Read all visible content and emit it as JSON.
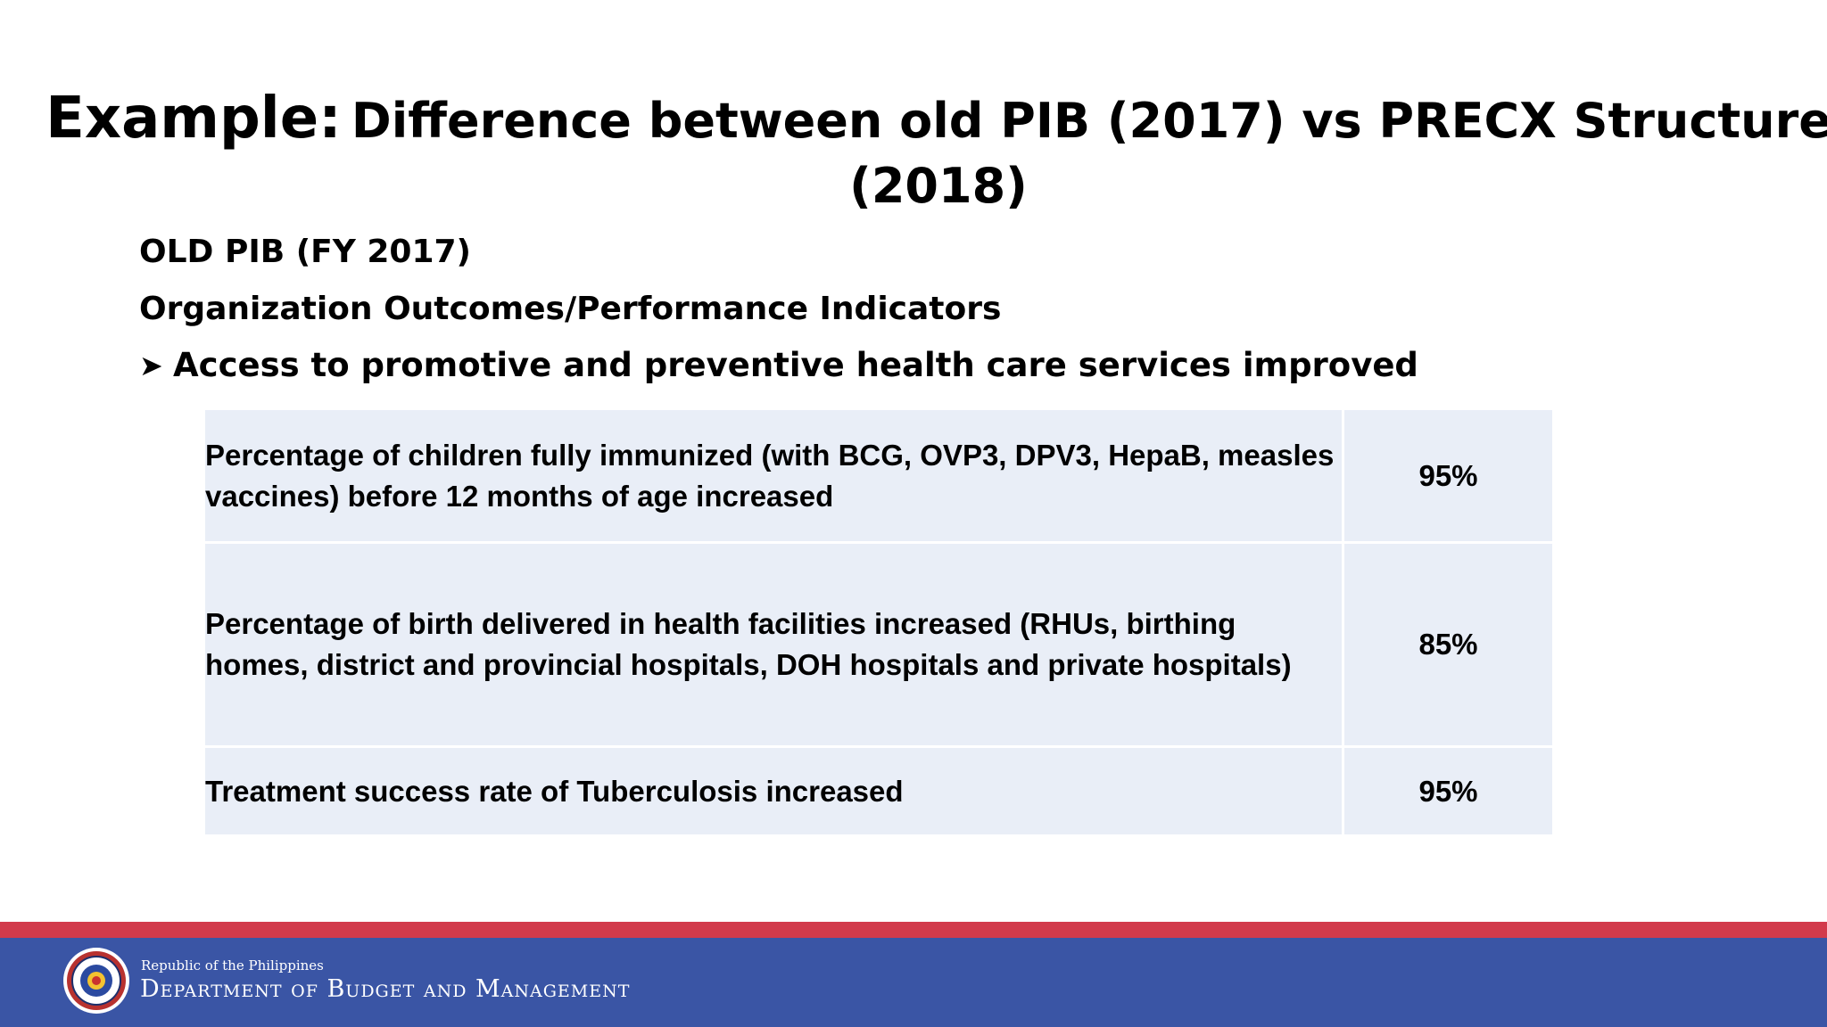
{
  "slide": {
    "title_lead": "Example:",
    "title_rest": "Difference between old PIB (2017) vs PRECX Structure (2018)",
    "subheading_1": "OLD PIB (FY 2017)",
    "subheading_2": "Organization Outcomes/Performance Indicators",
    "bullet_icon": "arrowhead-bullet-icon",
    "bullet_text": "Access to promotive and preventive health care services improved"
  },
  "indicators": [
    {
      "text": "Percentage of children fully immunized (with BCG, OVP3, DPV3, HepaB, measles vaccines) before 12 months of age increased",
      "target": "95%"
    },
    {
      "text": "Percentage of birth delivered in health facilities increased (RHUs, birthing homes, district and provincial hospitals, DOH hospitals and private hospitals)",
      "target": "85%"
    },
    {
      "text": "Treatment success rate of Tuberculosis increased",
      "target": "95%"
    }
  ],
  "footer": {
    "seal_icon": "dbm-seal-icon",
    "republic": "Republic of the Philippines",
    "department": "Department of Budget and Management"
  },
  "colors": {
    "table_fill": "#e9eef7",
    "footer_red": "#d23a4b",
    "footer_blue": "#3a55a5"
  }
}
